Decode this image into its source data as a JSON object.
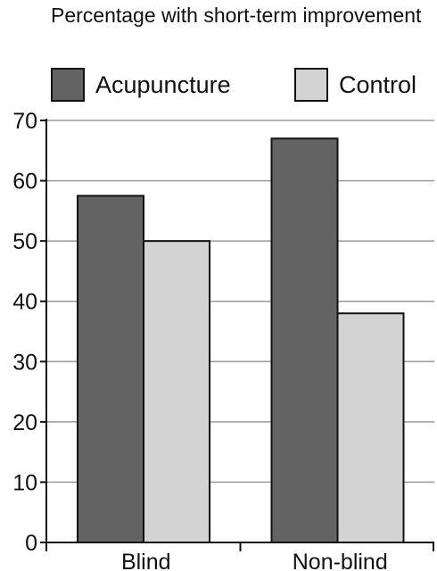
{
  "chart_data": {
    "type": "bar",
    "title": "Percentage with short-term improvement",
    "categories": [
      "Blind",
      "Non-blind"
    ],
    "series": [
      {
        "name": "Acupuncture",
        "values": [
          57.5,
          67
        ],
        "color": "#636363"
      },
      {
        "name": "Control",
        "values": [
          50,
          38
        ],
        "color": "#d3d3d3"
      }
    ],
    "ylim": [
      0,
      70
    ],
    "yticks": [
      0,
      10,
      20,
      30,
      40,
      50,
      60,
      70
    ],
    "grid": true,
    "legend_position": "top"
  }
}
